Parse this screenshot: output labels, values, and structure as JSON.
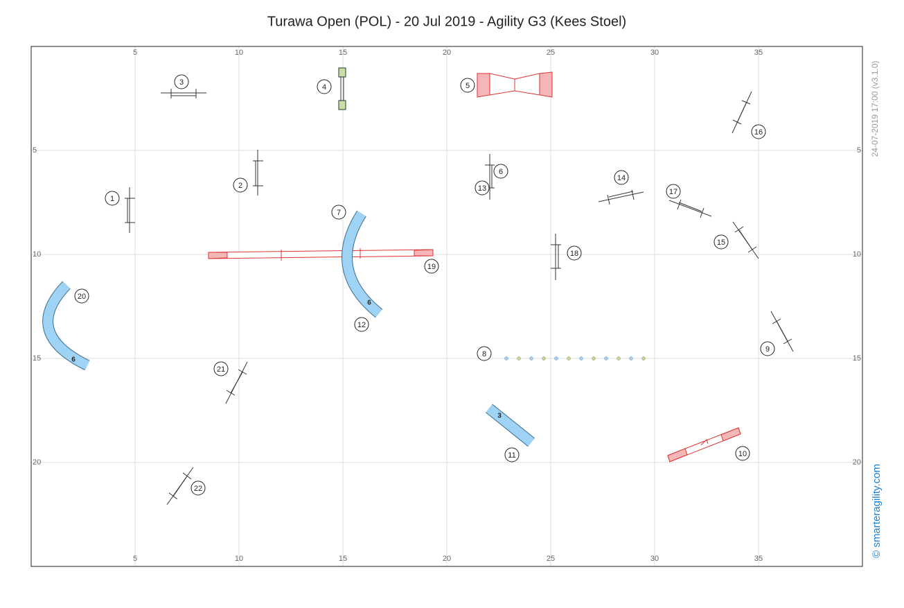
{
  "title": "Turawa Open (POL) - 20 Jul 2019 - Agility G3 (Kees Stoel)",
  "xticks": [
    5,
    10,
    15,
    20,
    25,
    30,
    35
  ],
  "yticks": [
    5,
    10,
    15,
    20
  ],
  "obstacle_numbers": [
    1,
    2,
    3,
    4,
    5,
    6,
    7,
    8,
    9,
    10,
    11,
    12,
    13,
    14,
    15,
    16,
    17,
    18,
    19,
    20,
    21,
    22
  ],
  "tunnel_lengths": [
    6,
    6,
    3
  ],
  "timestamp": "24-07-2019 17:00  (v3.1.0)",
  "credit": "© smarteragility.com"
}
